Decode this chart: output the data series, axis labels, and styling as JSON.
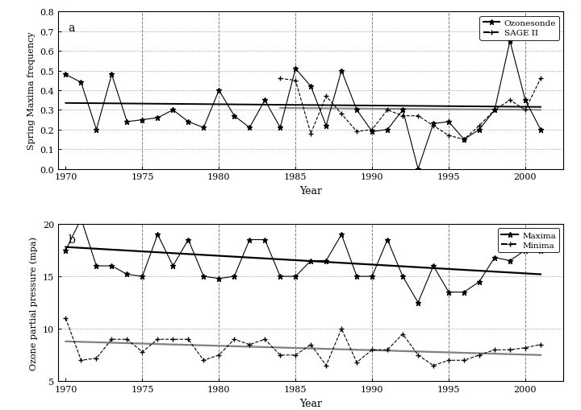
{
  "panel_a": {
    "title_label": "a",
    "ylabel": "Spring Maxima frequency",
    "xlabel": "Year",
    "ylim": [
      0.0,
      0.8
    ],
    "yticks": [
      0.0,
      0.1,
      0.2,
      0.3,
      0.4,
      0.5,
      0.6,
      0.7,
      0.8
    ],
    "xlim": [
      1969.5,
      2002.5
    ],
    "xticks": [
      1970,
      1975,
      1980,
      1985,
      1990,
      1995,
      2000
    ],
    "ozone_x": [
      1970,
      1971,
      1972,
      1973,
      1974,
      1975,
      1976,
      1977,
      1978,
      1979,
      1980,
      1981,
      1982,
      1983,
      1984,
      1985,
      1986,
      1987,
      1988,
      1989,
      1990,
      1991,
      1992,
      1993,
      1994,
      1995,
      1996,
      1997,
      1998,
      1999,
      2000,
      2001
    ],
    "ozone_y": [
      0.48,
      0.44,
      0.2,
      0.48,
      0.24,
      0.25,
      0.26,
      0.3,
      0.24,
      0.21,
      0.4,
      0.27,
      0.21,
      0.35,
      0.21,
      0.51,
      0.42,
      0.22,
      0.5,
      0.3,
      0.19,
      0.2,
      0.3,
      0.0,
      0.23,
      0.24,
      0.15,
      0.2,
      0.3,
      0.65,
      0.35,
      0.2
    ],
    "sage_x": [
      1984,
      1985,
      1986,
      1987,
      1988,
      1989,
      1990,
      1991,
      1992,
      1993,
      1994,
      1995,
      1996,
      1997,
      1998,
      1999,
      2000,
      2001
    ],
    "sage_y": [
      0.46,
      0.45,
      0.18,
      0.37,
      0.28,
      0.19,
      0.2,
      0.3,
      0.27,
      0.27,
      0.22,
      0.17,
      0.15,
      0.22,
      0.3,
      0.35,
      0.3,
      0.46
    ],
    "ozone_trend_x": [
      1970,
      2001
    ],
    "ozone_trend_y": [
      0.335,
      0.315
    ],
    "sage_trend_x": [
      1984,
      2001
    ],
    "sage_trend_y": [
      0.31,
      0.3
    ],
    "vlines": [
      1975,
      1980,
      1985,
      1990,
      1995,
      2000
    ]
  },
  "panel_b": {
    "title_label": "b",
    "ylabel": "Ozone partial pressure (mpa)",
    "xlabel": "Year",
    "ylim": [
      5.0,
      20.0
    ],
    "yticks": [
      5,
      10,
      15,
      20
    ],
    "xlim": [
      1969.5,
      2002.5
    ],
    "xticks": [
      1970,
      1975,
      1980,
      1985,
      1990,
      1995,
      2000
    ],
    "maxima_x": [
      1970,
      1971,
      1972,
      1973,
      1974,
      1975,
      1976,
      1977,
      1978,
      1979,
      1980,
      1981,
      1982,
      1983,
      1984,
      1985,
      1986,
      1987,
      1988,
      1989,
      1990,
      1991,
      1992,
      1993,
      1994,
      1995,
      1996,
      1997,
      1998,
      1999,
      2000,
      2001
    ],
    "maxima_y": [
      17.5,
      20.5,
      16.0,
      16.0,
      15.2,
      15.0,
      19.0,
      16.0,
      18.5,
      15.0,
      14.8,
      15.0,
      18.5,
      18.5,
      15.0,
      15.0,
      16.5,
      16.5,
      19.0,
      15.0,
      15.0,
      18.5,
      15.0,
      12.5,
      16.0,
      13.5,
      13.5,
      14.5,
      16.8,
      16.5,
      17.5,
      17.5
    ],
    "minima_x": [
      1970,
      1971,
      1972,
      1973,
      1974,
      1975,
      1976,
      1977,
      1978,
      1979,
      1980,
      1981,
      1982,
      1983,
      1984,
      1985,
      1986,
      1987,
      1988,
      1989,
      1990,
      1991,
      1992,
      1993,
      1994,
      1995,
      1996,
      1997,
      1998,
      1999,
      2000,
      2001
    ],
    "minima_y": [
      11.0,
      7.0,
      7.2,
      9.0,
      9.0,
      7.8,
      9.0,
      9.0,
      9.0,
      7.0,
      7.5,
      9.0,
      8.5,
      9.0,
      7.5,
      7.5,
      8.5,
      6.5,
      10.0,
      6.8,
      8.0,
      8.0,
      9.5,
      7.5,
      6.5,
      7.0,
      7.0,
      7.5,
      8.0,
      8.0,
      8.2,
      8.5
    ],
    "maxima_trend_x": [
      1970,
      2001
    ],
    "maxima_trend_y": [
      17.8,
      15.2
    ],
    "minima_trend_x": [
      1970,
      2001
    ],
    "minima_trend_y": [
      8.8,
      7.5
    ],
    "vlines": [
      1975,
      1980,
      1985,
      1990,
      1995,
      2000
    ]
  }
}
